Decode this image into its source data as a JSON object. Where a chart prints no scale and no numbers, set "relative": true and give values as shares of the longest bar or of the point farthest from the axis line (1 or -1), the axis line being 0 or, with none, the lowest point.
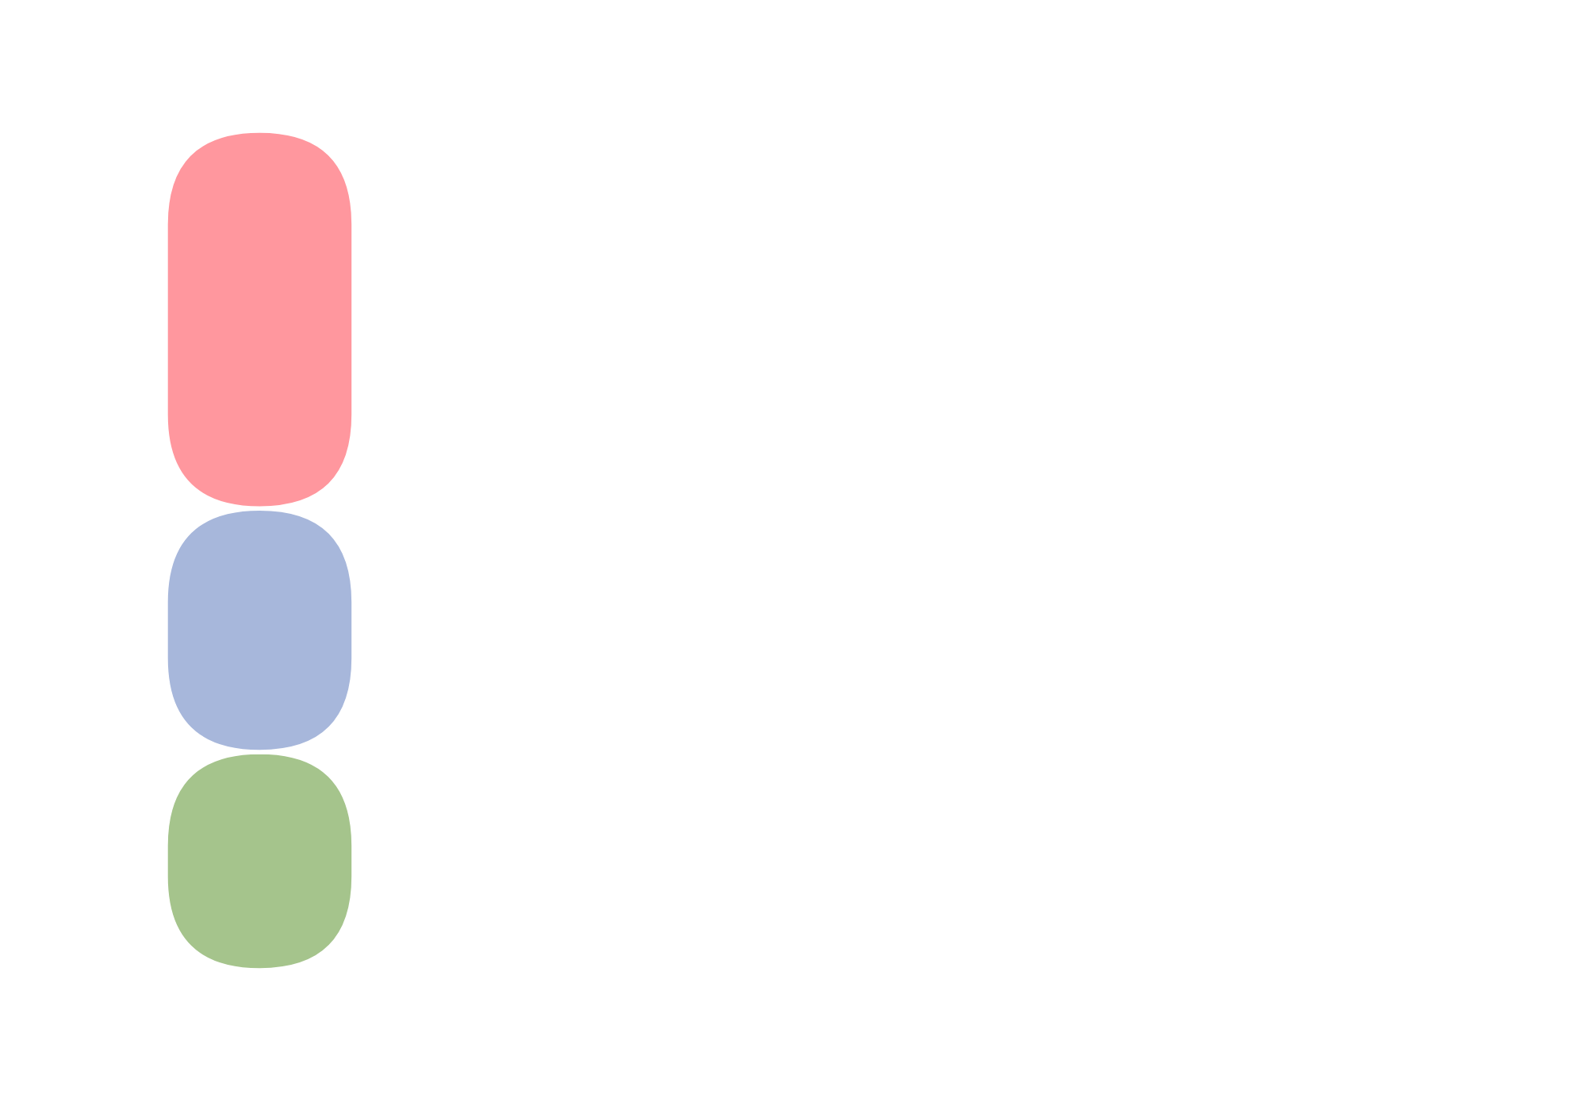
{
  "chart_data": {
    "type": "bar",
    "stacked": true,
    "relative": true,
    "categories": [
      null
    ],
    "series": [
      {
        "color": "#a5c48c",
        "values": [
          0.26
        ]
      },
      {
        "color": "#a7b7db",
        "values": [
          0.29
        ]
      },
      {
        "color": "#ff979e",
        "values": [
          0.45
        ]
      }
    ]
  }
}
